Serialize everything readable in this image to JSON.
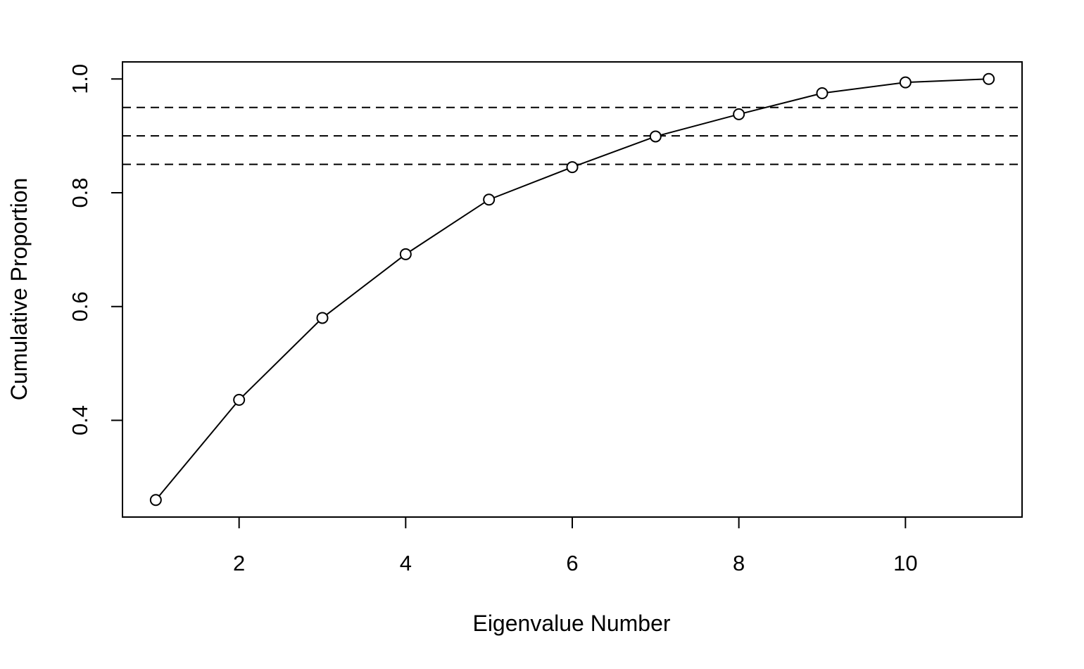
{
  "chart_data": {
    "type": "line",
    "title": "",
    "xlabel": "Eigenvalue Number",
    "ylabel": "Cumulative Proportion",
    "x": [
      1,
      2,
      3,
      4,
      5,
      6,
      7,
      8,
      9,
      10,
      11
    ],
    "series": [
      {
        "name": "Cumulative Proportion",
        "values": [
          0.26,
          0.436,
          0.58,
          0.692,
          0.788,
          0.845,
          0.899,
          0.938,
          0.975,
          0.994,
          1.0
        ],
        "marker": "open-circle",
        "line": "solid",
        "color": "#000000"
      }
    ],
    "reference_lines": [
      0.85,
      0.9,
      0.95
    ],
    "reference_line_style": "dashed",
    "xlim": [
      0.6,
      11.4
    ],
    "ylim": [
      0.23,
      1.03
    ],
    "xticks": [
      2,
      4,
      6,
      8,
      10
    ],
    "xtick_labels": [
      "2",
      "4",
      "6",
      "8",
      "10"
    ],
    "yticks": [
      0.4,
      0.6,
      0.8,
      1.0
    ],
    "ytick_labels": [
      "0.4",
      "0.6",
      "0.8",
      "1.0"
    ],
    "grid": false,
    "legend": "none"
  }
}
